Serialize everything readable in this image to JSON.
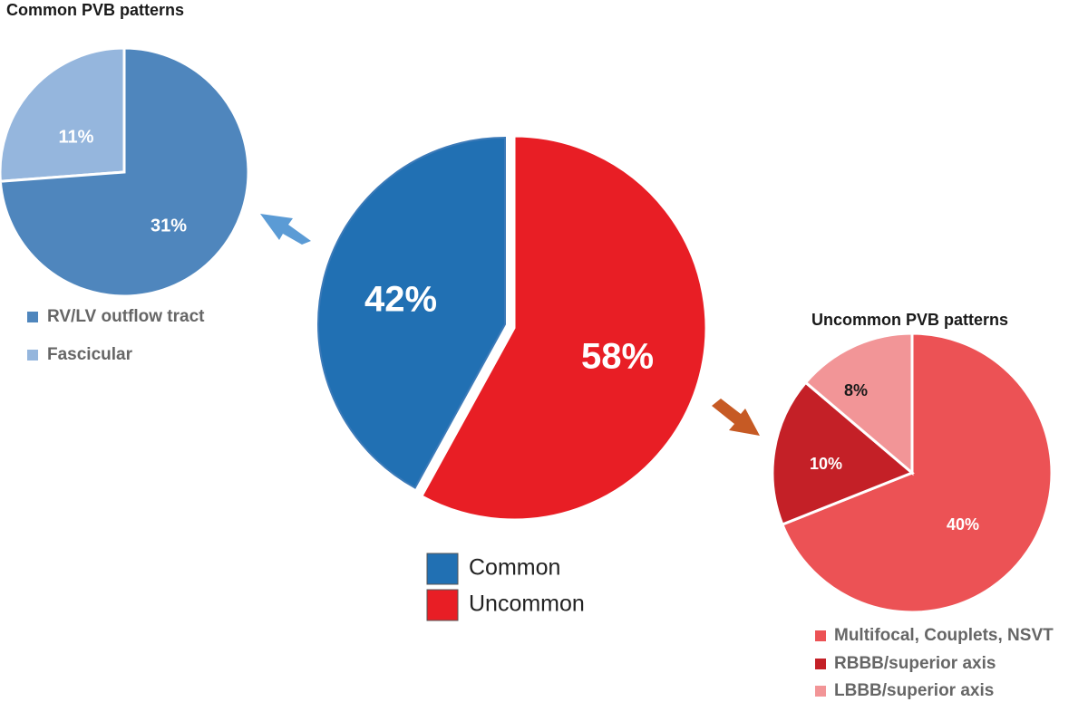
{
  "colors": {
    "common": "#2170b3",
    "uncommon": "#e81e25",
    "rv_lv": "#4f86bd",
    "fascicular": "#95b6dd",
    "multifocal": "#ec5255",
    "rbbb": "#c42027",
    "lbbb": "#f29597",
    "arrow_blue": "#5b9bd5",
    "arrow_orange": "#c65a24",
    "title_text": "#1a1a1a",
    "legend_text_small": "#666666",
    "legend_text_main": "#222222"
  },
  "chart_data": [
    {
      "type": "pie",
      "title": "",
      "slices": [
        {
          "name": "Common",
          "value": 42,
          "label": "42%",
          "color_key": "common"
        },
        {
          "name": "Uncommon",
          "value": 58,
          "label": "58%",
          "color_key": "uncommon"
        }
      ],
      "legend": [
        {
          "label": "Common",
          "color_key": "common"
        },
        {
          "label": "Uncommon",
          "color_key": "uncommon"
        }
      ]
    },
    {
      "type": "pie",
      "title": "Common PVB patterns",
      "slices": [
        {
          "name": "RV/LV outflow tract",
          "value": 31,
          "label": "31%",
          "color_key": "rv_lv"
        },
        {
          "name": "Fascicular",
          "value": 11,
          "label": "11%",
          "color_key": "fascicular"
        }
      ],
      "legend": [
        {
          "label": "RV/LV outflow tract",
          "color_key": "rv_lv"
        },
        {
          "label": "Fascicular",
          "color_key": "fascicular"
        }
      ]
    },
    {
      "type": "pie",
      "title": "Uncommon PVB patterns",
      "slices": [
        {
          "name": "Multifocal, Couplets, NSVT",
          "value": 40,
          "label": "40%",
          "color_key": "multifocal"
        },
        {
          "name": "RBBB/superior axis",
          "value": 10,
          "label": "10%",
          "color_key": "rbbb"
        },
        {
          "name": "LBBB/superior axis",
          "value": 8,
          "label": "8%",
          "color_key": "lbbb"
        }
      ],
      "legend": [
        {
          "label": "Multifocal, Couplets, NSVT",
          "color_key": "multifocal"
        },
        {
          "label": "RBBB/superior axis",
          "color_key": "rbbb"
        },
        {
          "label": "LBBB/superior axis",
          "color_key": "lbbb"
        }
      ]
    }
  ]
}
